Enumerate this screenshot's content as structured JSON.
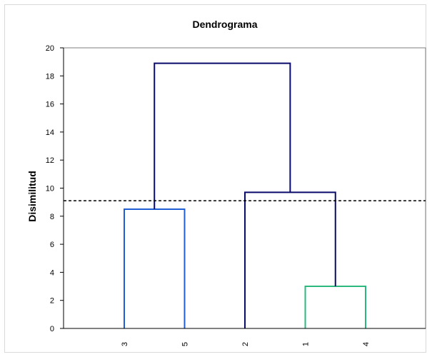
{
  "chart_data": {
    "type": "dendrogram",
    "title": "Dendrograma",
    "ylabel": "Disimilitud",
    "xlabel": "",
    "ylim": [
      0,
      20
    ],
    "yticks": [
      0,
      2,
      4,
      6,
      8,
      10,
      12,
      14,
      16,
      18,
      20
    ],
    "leaves": [
      "3",
      "5",
      "2",
      "1",
      "4"
    ],
    "cut_height": 9.1,
    "merges": [
      {
        "left": "1",
        "right": "4",
        "height": 3.0,
        "color": "#2db87d"
      },
      {
        "left": "3",
        "right": "5",
        "height": 8.5,
        "color": "#1f5fd6"
      },
      {
        "left": "2",
        "right": "(1,4)",
        "height": 9.7,
        "color": "#0a0a6b"
      },
      {
        "left": "(3,5)",
        "right": "(2,(1,4))",
        "height": 18.9,
        "color": "#0a0a6b"
      }
    ],
    "grid": false
  }
}
